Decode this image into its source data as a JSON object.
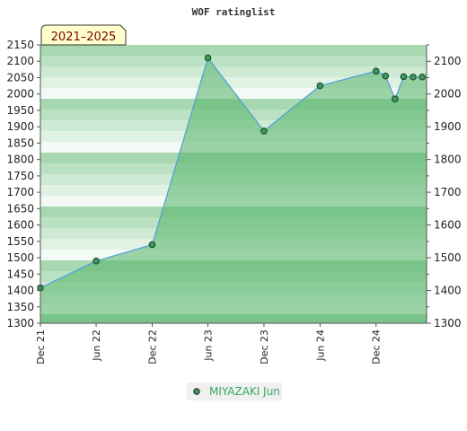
{
  "chart_data": {
    "type": "area",
    "title": "WOF ratinglist",
    "badge": "2021–2025",
    "xlabel": "",
    "ylabel": "",
    "x_range": [
      "2021-12-01",
      "2025-05-15"
    ],
    "ylim": [
      1300,
      2150
    ],
    "y_ticks_left": [
      1300,
      1350,
      1400,
      1450,
      1500,
      1550,
      1600,
      1650,
      1700,
      1750,
      1800,
      1850,
      1900,
      1950,
      2000,
      2050,
      2100,
      2150
    ],
    "y_ticks_right": [
      1300,
      1400,
      1500,
      1600,
      1700,
      1800,
      1900,
      2000,
      2100
    ],
    "x_ticks": [
      {
        "label": "Dec 21",
        "date": "2021-12-01"
      },
      {
        "label": "Jun 22",
        "date": "2022-06-01"
      },
      {
        "label": "Dec 22",
        "date": "2022-12-01"
      },
      {
        "label": "Jun 23",
        "date": "2023-06-01"
      },
      {
        "label": "Dec 23",
        "date": "2023-12-01"
      },
      {
        "label": "Jun 24",
        "date": "2024-06-01"
      },
      {
        "label": "Dec 24",
        "date": "2024-12-01"
      }
    ],
    "series": [
      {
        "name": "MIYAZAKI Jun",
        "points": [
          {
            "x": "2021-12-01",
            "y": 1408
          },
          {
            "x": "2022-06-01",
            "y": 1490
          },
          {
            "x": "2022-12-01",
            "y": 1540
          },
          {
            "x": "2023-06-01",
            "y": 2110
          },
          {
            "x": "2023-12-01",
            "y": 1887
          },
          {
            "x": "2024-06-01",
            "y": 2025
          },
          {
            "x": "2024-12-01",
            "y": 2070
          },
          {
            "x": "2025-01-01",
            "y": 2055
          },
          {
            "x": "2025-02-01",
            "y": 1985
          },
          {
            "x": "2025-03-01",
            "y": 2053
          },
          {
            "x": "2025-04-01",
            "y": 2052
          },
          {
            "x": "2025-05-01",
            "y": 2052
          }
        ]
      }
    ],
    "grid": true,
    "legend_position": "bottom-center"
  },
  "colors": {
    "area_fill": "#79c489",
    "line": "#4f9fd8",
    "marker": "#3a9a5a",
    "band_dark": "#a8d8b2",
    "band_light": "#eef8f0",
    "badge_bg": "#ffffcc"
  }
}
